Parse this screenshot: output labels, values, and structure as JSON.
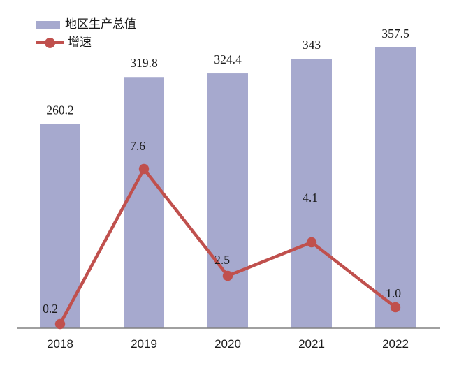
{
  "chart_data": {
    "type": "bar",
    "subtype": "bar-line-combo",
    "categories": [
      "2018",
      "2019",
      "2020",
      "2021",
      "2022"
    ],
    "series": [
      {
        "name": "地区生产总值",
        "type": "bar",
        "axis": "primary",
        "values": [
          260.2,
          319.8,
          324.4,
          343,
          357.5
        ],
        "labels": [
          "260.2",
          "319.8",
          "324.4",
          "343",
          "357.5"
        ],
        "color": "#A6A9CE"
      },
      {
        "name": "增速",
        "type": "line",
        "axis": "secondary",
        "values": [
          0.2,
          7.6,
          2.5,
          4.1,
          1.0
        ],
        "labels": [
          "0.2",
          "7.6",
          "2.5",
          "4.1",
          "1.0"
        ],
        "color": "#C0504D",
        "label_offsets": [
          [
            -14,
            -16
          ],
          [
            -9,
            -27
          ],
          [
            -8,
            -17
          ],
          [
            -2,
            -58
          ],
          [
            -3,
            -14
          ]
        ]
      }
    ],
    "title": "",
    "xlabel": "",
    "ylabel": "",
    "primary_ylim": [
      0,
      400
    ],
    "secondary_ylim": [
      0,
      15
    ],
    "grid": false,
    "legend_position": "top-left",
    "data_labels": true,
    "axis_line_color": "#808080",
    "label_color": "#1a1a1a"
  }
}
